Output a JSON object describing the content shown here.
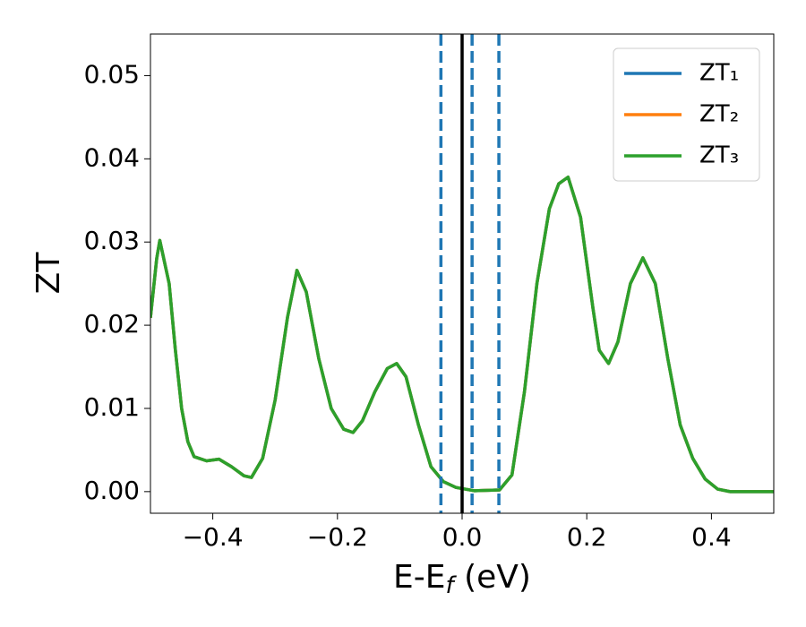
{
  "chart_data": {
    "type": "line",
    "x_label": [
      "E-E",
      "f",
      " (eV)"
    ],
    "y_label": "ZT",
    "x": [
      -0.5,
      -0.49,
      -0.485,
      -0.47,
      -0.46,
      -0.45,
      -0.44,
      -0.43,
      -0.41,
      -0.39,
      -0.37,
      -0.35,
      -0.338,
      -0.32,
      -0.3,
      -0.28,
      -0.265,
      -0.25,
      -0.23,
      -0.21,
      -0.19,
      -0.175,
      -0.16,
      -0.14,
      -0.12,
      -0.105,
      -0.09,
      -0.07,
      -0.05,
      -0.03,
      -0.01,
      0.02,
      0.06,
      0.08,
      0.1,
      0.12,
      0.14,
      0.155,
      0.17,
      0.19,
      0.21,
      0.22,
      0.235,
      0.25,
      0.27,
      0.29,
      0.31,
      0.33,
      0.35,
      0.37,
      0.39,
      0.41,
      0.43,
      0.5
    ],
    "series": [
      {
        "name": "ZT₁",
        "color": "#1f77b4",
        "values": [
          0.0209,
          0.028,
          0.0302,
          0.025,
          0.017,
          0.01,
          0.006,
          0.0042,
          0.0037,
          0.0039,
          0.003,
          0.0019,
          0.0017,
          0.004,
          0.011,
          0.021,
          0.0266,
          0.024,
          0.016,
          0.01,
          0.0075,
          0.0071,
          0.0085,
          0.012,
          0.0148,
          0.0154,
          0.0138,
          0.008,
          0.003,
          0.0012,
          0.0005,
          0.0001,
          0.0002,
          0.002,
          0.012,
          0.025,
          0.034,
          0.037,
          0.0378,
          0.033,
          0.022,
          0.017,
          0.0154,
          0.018,
          0.025,
          0.0281,
          0.025,
          0.016,
          0.008,
          0.004,
          0.0015,
          0.0003,
          0.0,
          0.0
        ]
      },
      {
        "name": "ZT₂",
        "color": "#ff7f0e",
        "values": [
          0.0209,
          0.028,
          0.0302,
          0.025,
          0.017,
          0.01,
          0.006,
          0.0042,
          0.0037,
          0.0039,
          0.003,
          0.0019,
          0.0017,
          0.004,
          0.011,
          0.021,
          0.0266,
          0.024,
          0.016,
          0.01,
          0.0075,
          0.0071,
          0.0085,
          0.012,
          0.0148,
          0.0154,
          0.0138,
          0.008,
          0.003,
          0.0012,
          0.0005,
          0.0001,
          0.0002,
          0.002,
          0.012,
          0.025,
          0.034,
          0.037,
          0.0378,
          0.033,
          0.022,
          0.017,
          0.0154,
          0.018,
          0.025,
          0.0281,
          0.025,
          0.016,
          0.008,
          0.004,
          0.0015,
          0.0003,
          0.0,
          0.0
        ]
      },
      {
        "name": "ZT₃",
        "color": "#2ca02c",
        "values": [
          0.0209,
          0.028,
          0.0302,
          0.025,
          0.017,
          0.01,
          0.006,
          0.0042,
          0.0037,
          0.0039,
          0.003,
          0.0019,
          0.0017,
          0.004,
          0.011,
          0.021,
          0.0266,
          0.024,
          0.016,
          0.01,
          0.0075,
          0.0071,
          0.0085,
          0.012,
          0.0148,
          0.0154,
          0.0138,
          0.008,
          0.003,
          0.0012,
          0.0005,
          0.0001,
          0.0002,
          0.002,
          0.012,
          0.025,
          0.034,
          0.037,
          0.0378,
          0.033,
          0.022,
          0.017,
          0.0154,
          0.018,
          0.025,
          0.0281,
          0.025,
          0.016,
          0.008,
          0.004,
          0.0015,
          0.0003,
          0.0,
          0.0
        ]
      }
    ],
    "vlines": [
      {
        "x": 0,
        "color": "#000000",
        "style": "solid"
      },
      {
        "x": -0.034,
        "color": "#1f77b4",
        "style": "dashed"
      },
      {
        "x": 0.016,
        "color": "#1f77b4",
        "style": "dashed"
      },
      {
        "x": 0.059,
        "color": "#1f77b4",
        "style": "dashed"
      }
    ],
    "xlim": [
      -0.5,
      0.5
    ],
    "ylim": [
      -0.0026,
      0.055
    ],
    "xticks": [
      {
        "value": -0.4,
        "label": "−0.4"
      },
      {
        "value": -0.2,
        "label": "−0.2"
      },
      {
        "value": 0,
        "label": "0.0"
      },
      {
        "value": 0.2,
        "label": "0.2"
      },
      {
        "value": 0.4,
        "label": "0.4"
      }
    ],
    "yticks": [
      {
        "value": 0,
        "label": "0.00"
      },
      {
        "value": 0.01,
        "label": "0.01"
      },
      {
        "value": 0.02,
        "label": "0.02"
      },
      {
        "value": 0.03,
        "label": "0.03"
      },
      {
        "value": 0.04,
        "label": "0.04"
      },
      {
        "value": 0.05,
        "label": "0.05"
      }
    ],
    "grid": false,
    "legend": "upper right"
  }
}
